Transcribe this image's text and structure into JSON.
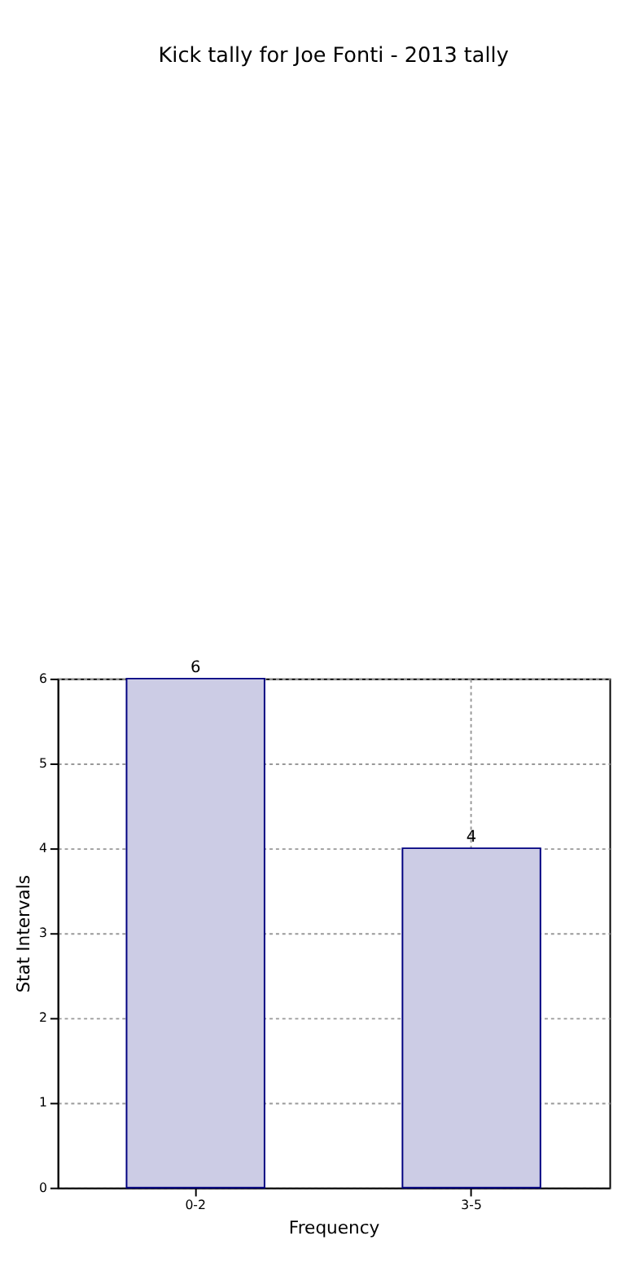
{
  "chart_data": {
    "type": "bar",
    "title": "Kick tally for Joe Fonti - 2013 tally",
    "xlabel": "Frequency",
    "ylabel": "Stat Intervals",
    "categories": [
      "0-2",
      "3-5"
    ],
    "series": [
      {
        "color": "#ccccE5",
        "values": [
          6,
          4
        ]
      }
    ],
    "ylim": [
      0,
      6
    ],
    "yticks": [
      0,
      1,
      2,
      3,
      4,
      5,
      6
    ],
    "grid": true,
    "data_labels": true
  }
}
